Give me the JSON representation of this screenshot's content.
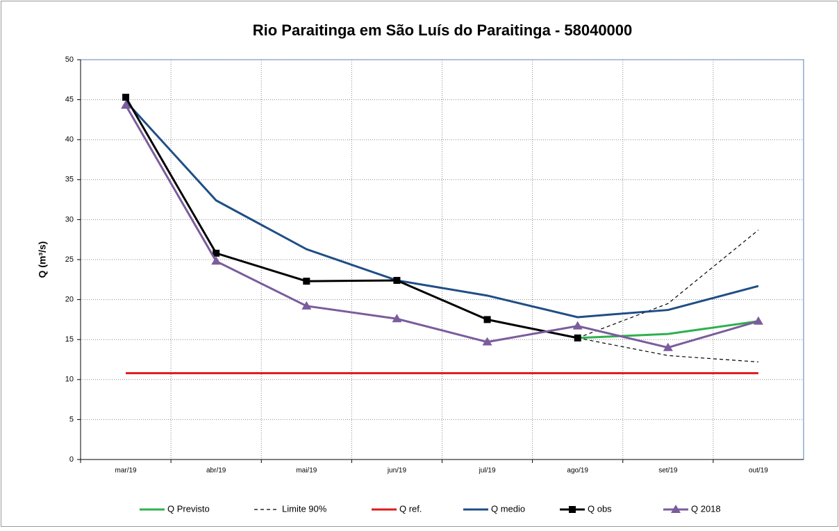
{
  "chart_data": {
    "type": "line",
    "title": "Rio Paraitinga em São Luís do Paraitinga - 58040000",
    "y_label": "Q (m³/s)",
    "categories": [
      "mar/19",
      "abr/19",
      "mai/19",
      "jun/19",
      "jul/19",
      "ago/19",
      "set/19",
      "out/19"
    ],
    "ylim": [
      0,
      50
    ],
    "yticks": [
      0,
      5,
      10,
      15,
      20,
      25,
      30,
      35,
      40,
      45,
      50
    ],
    "grid": true,
    "legend": "bottom",
    "series": [
      {
        "name": "Q Previsto",
        "color": "#2eb04f",
        "values": [
          null,
          null,
          null,
          null,
          null,
          15.2,
          15.7,
          17.3
        ]
      },
      {
        "name": "Limite 90%",
        "color": "#000000",
        "dashed": true,
        "values": [
          null,
          null,
          null,
          null,
          null,
          15.2,
          19.5,
          28.7
        ],
        "lower": [
          null,
          null,
          null,
          null,
          null,
          15.2,
          13.0,
          12.2
        ]
      },
      {
        "name": "Q ref.",
        "color": "#e01a1a",
        "values": [
          10.8,
          10.8,
          10.8,
          10.8,
          10.8,
          10.8,
          10.8,
          10.8
        ]
      },
      {
        "name": "Q medio",
        "color": "#1f4e85",
        "values": [
          44.8,
          32.4,
          26.3,
          22.4,
          20.5,
          17.8,
          18.7,
          21.7
        ]
      },
      {
        "name": "Q obs",
        "color": "#000000",
        "marker": "square",
        "values": [
          45.3,
          25.8,
          22.3,
          22.4,
          17.5,
          15.2,
          null,
          null
        ]
      },
      {
        "name": "Q 2018",
        "color": "#7b5c9c",
        "marker": "triangle",
        "values": [
          44.3,
          24.8,
          19.2,
          17.6,
          14.7,
          16.7,
          14.0,
          17.3
        ]
      }
    ]
  }
}
